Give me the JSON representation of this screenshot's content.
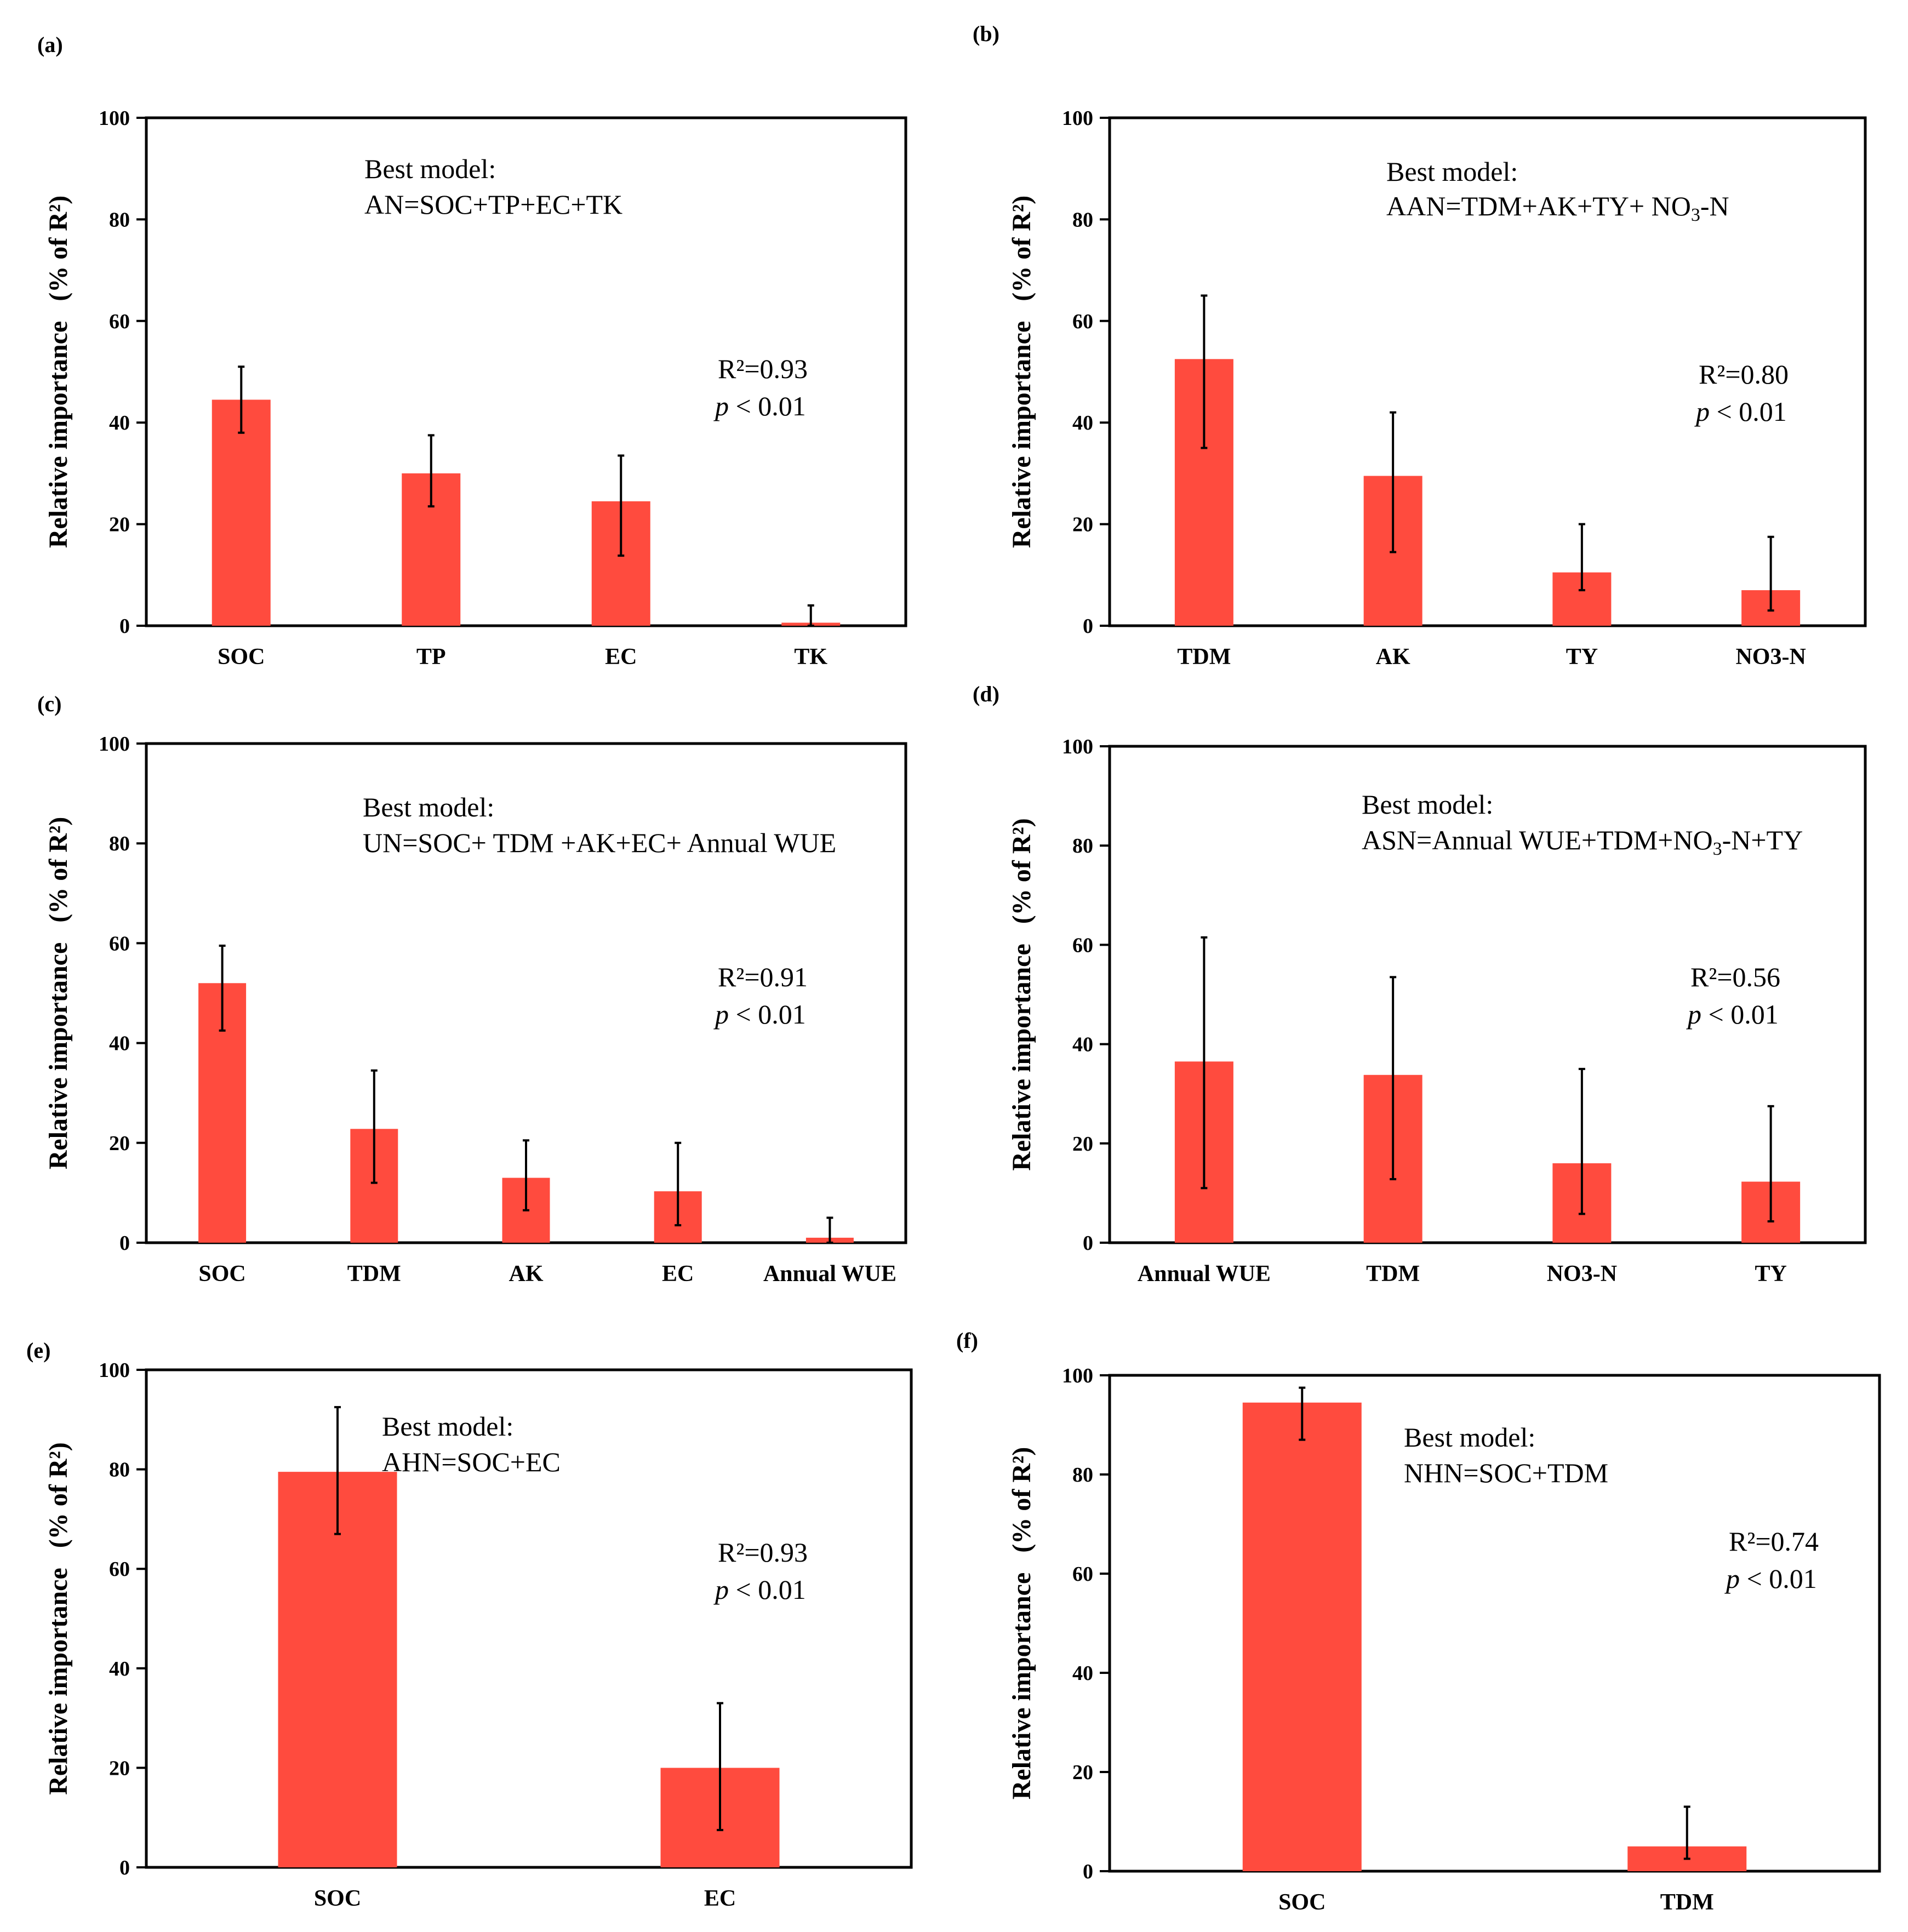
{
  "chart_data": [
    {
      "type": "bar",
      "panel_label": "(a)",
      "categories": [
        "SOC",
        "TP",
        "EC",
        "TK"
      ],
      "values": [
        44.5,
        30.0,
        24.5,
        0.6
      ],
      "error_low": [
        38.0,
        23.5,
        13.8,
        0.0
      ],
      "error_high": [
        51.0,
        37.5,
        33.5,
        4.0
      ],
      "ylabel_main": "Relative importance",
      "ylabel_unit": "(% of R²)",
      "ylim": [
        0,
        100
      ],
      "yticks": [
        0,
        20,
        40,
        60,
        80,
        100
      ],
      "model_title": "Best model:",
      "model_eq": {
        "parts": [
          "AN=SOC+TP+EC+TK"
        ]
      },
      "r2_label": "R²=0.93",
      "p_sym": "p",
      "p_rest": " < 0.01"
    },
    {
      "type": "bar",
      "panel_label": "(b)",
      "categories": [
        "TDM",
        "AK",
        "TY",
        "NO3-N"
      ],
      "values": [
        52.5,
        29.5,
        10.5,
        7.0
      ],
      "error_low": [
        35.0,
        14.5,
        7.0,
        3.0
      ],
      "error_high": [
        65.0,
        42.0,
        20.0,
        17.5
      ],
      "ylabel_main": "Relative importance",
      "ylabel_unit": "(% of R²)",
      "ylim": [
        0,
        100
      ],
      "yticks": [
        0,
        20,
        40,
        60,
        80,
        100
      ],
      "model_title": "Best model:",
      "model_eq": {
        "parts": [
          "AAN=TDM+AK+TY+ NO",
          "3",
          "-N"
        ]
      },
      "r2_label": "R²=0.80",
      "p_sym": "p",
      "p_rest": " < 0.01"
    },
    {
      "type": "bar",
      "panel_label": "(c)",
      "categories": [
        "SOC",
        "TDM",
        "AK",
        "EC",
        "Annual WUE"
      ],
      "values": [
        52.0,
        22.8,
        13.0,
        10.3,
        1.0
      ],
      "error_low": [
        42.5,
        12.0,
        6.5,
        3.5,
        0.0
      ],
      "error_high": [
        59.5,
        34.5,
        20.5,
        20.0,
        5.0
      ],
      "ylabel_main": "Relative importance",
      "ylabel_unit": "(% of R²)",
      "ylim": [
        0,
        100
      ],
      "yticks": [
        0,
        20,
        40,
        60,
        80,
        100
      ],
      "model_title": "Best model:",
      "model_eq": {
        "parts": [
          "UN=SOC+ TDM +AK+EC+ Annual WUE"
        ]
      },
      "r2_label": "R²=0.91",
      "p_sym": "p",
      "p_rest": " < 0.01"
    },
    {
      "type": "bar",
      "panel_label": "(d)",
      "categories": [
        "Annual WUE",
        "TDM",
        "NO3-N",
        "TY"
      ],
      "values": [
        36.5,
        33.8,
        16.0,
        12.3
      ],
      "error_low": [
        11.0,
        12.8,
        5.8,
        4.3
      ],
      "error_high": [
        61.5,
        53.5,
        35.0,
        27.5
      ],
      "ylabel_main": "Relative importance",
      "ylabel_unit": "(% of R²)",
      "ylim": [
        0,
        100
      ],
      "yticks": [
        0,
        20,
        40,
        60,
        80,
        100
      ],
      "model_title": "Best model:",
      "model_eq": {
        "parts": [
          "ASN=Annual WUE+TDM+NO",
          "3",
          "-N+TY"
        ]
      },
      "r2_label": "R²=0.56",
      "p_sym": "p",
      "p_rest": " < 0.01"
    },
    {
      "type": "bar",
      "panel_label": "(e)",
      "categories": [
        "SOC",
        "EC"
      ],
      "values": [
        79.5,
        20.0
      ],
      "error_low": [
        67.0,
        7.5
      ],
      "error_high": [
        92.5,
        33.0
      ],
      "ylabel_main": "Relative importance",
      "ylabel_unit": "(% of R²)",
      "ylim": [
        0,
        100
      ],
      "yticks": [
        0,
        20,
        40,
        60,
        80,
        100
      ],
      "model_title": "Best model:",
      "model_eq": {
        "parts": [
          "AHN=SOC+EC"
        ]
      },
      "r2_label": "R²=0.93",
      "p_sym": "p",
      "p_rest": " < 0.01"
    },
    {
      "type": "bar",
      "panel_label": "(f)",
      "categories": [
        "SOC",
        "TDM"
      ],
      "values": [
        94.5,
        5.0
      ],
      "error_low": [
        87.0,
        2.5
      ],
      "error_high": [
        97.5,
        13.0
      ],
      "ylabel_main": "Relative importance",
      "ylabel_unit": "(% of R²)",
      "ylim": [
        0,
        100
      ],
      "yticks": [
        0,
        20,
        40,
        60,
        80,
        100
      ],
      "model_title": "Best model:",
      "model_eq": {
        "parts": [
          "NHN=SOC+TDM"
        ]
      },
      "r2_label": "R²=0.74",
      "p_sym": "p",
      "p_rest": " < 0.01"
    }
  ],
  "colors": {
    "bar": "#FF4B3E",
    "axis": "#000000"
  }
}
